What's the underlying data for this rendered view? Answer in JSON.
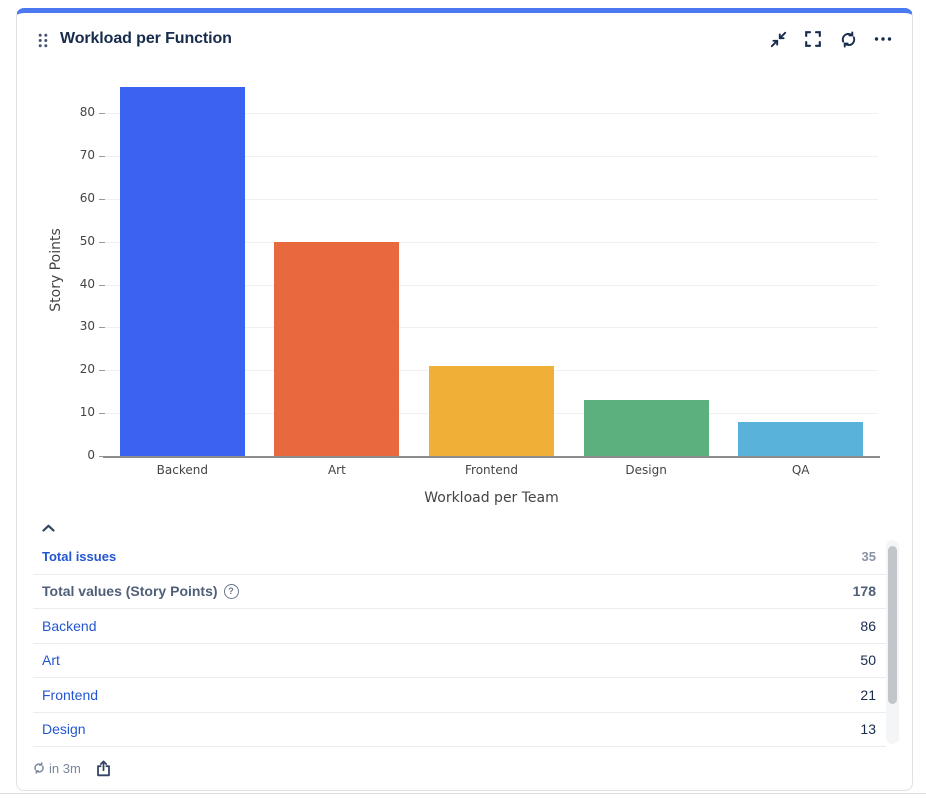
{
  "widget": {
    "title": "Workload per Function",
    "accent_color": "#4A79F2",
    "header_icons": [
      "collapse-icon",
      "fullscreen-icon",
      "refresh-icon",
      "more-icon"
    ],
    "footer": {
      "refresh_in": "in 3m"
    }
  },
  "chart_data": {
    "type": "bar",
    "categories": [
      "Backend",
      "Art",
      "Frontend",
      "Design",
      "QA"
    ],
    "values": [
      86,
      50,
      21,
      13,
      8
    ],
    "bar_colors": [
      "#3963F0",
      "#E8693E",
      "#F0B037",
      "#5CB07E",
      "#58B2DA"
    ],
    "title": "",
    "xlabel": "Workload per Team",
    "ylabel": "Story Points",
    "ylim": [
      0,
      86
    ],
    "yticks": [
      0,
      10,
      20,
      30,
      40,
      50,
      60,
      70,
      80
    ],
    "grid": true,
    "legend": false
  },
  "table": {
    "rows": [
      {
        "type": "total-issues",
        "label": "Total issues",
        "value": "35"
      },
      {
        "type": "total-values",
        "label": "Total values (Story Points)",
        "value": "178",
        "help_icon": true
      },
      {
        "type": "team",
        "label": "Backend",
        "value": "86"
      },
      {
        "type": "team",
        "label": "Art",
        "value": "50"
      },
      {
        "type": "team",
        "label": "Frontend",
        "value": "21"
      },
      {
        "type": "team",
        "label": "Design",
        "value": "13"
      }
    ]
  }
}
